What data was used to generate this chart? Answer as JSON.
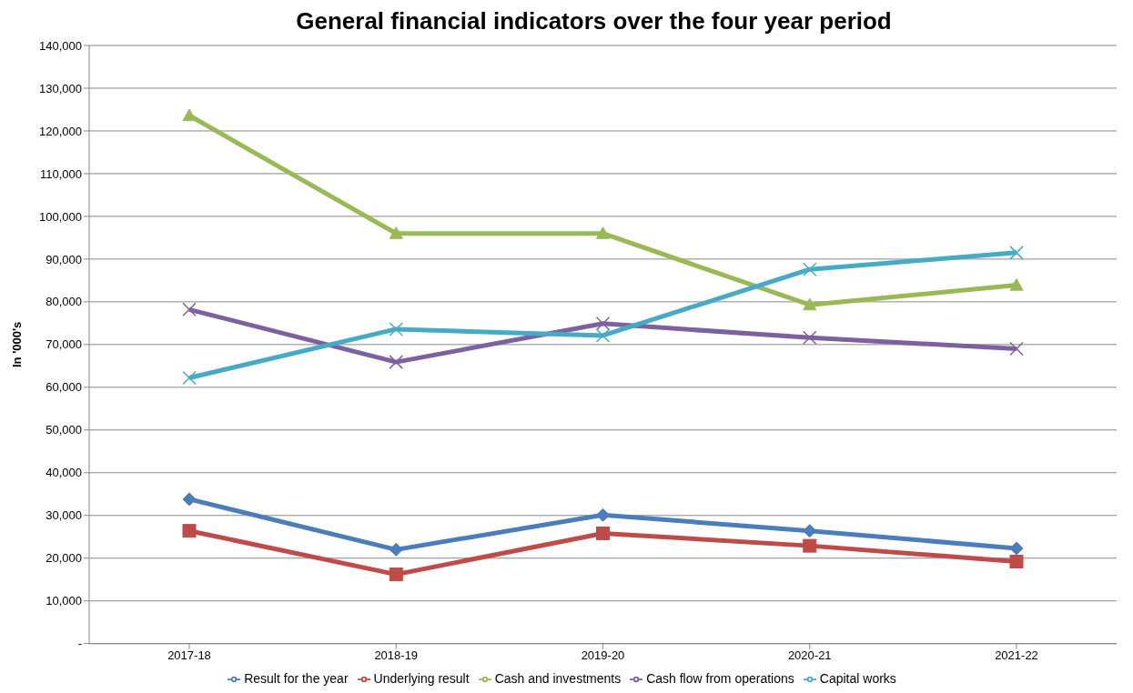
{
  "chart_data": {
    "type": "line",
    "title": "General financial indicators over the four year period",
    "ylabel": "In '000's",
    "categories": [
      "2017-18",
      "2018-19",
      "2019-20",
      "2020-21",
      "2021-22"
    ],
    "series": [
      {
        "name": "Result for the year",
        "color": "#4a7ebb",
        "marker": "diamond",
        "values": [
          33800,
          22000,
          30100,
          26400,
          22300
        ]
      },
      {
        "name": "Underlying result",
        "color": "#be4b48",
        "marker": "square",
        "values": [
          26400,
          16200,
          25800,
          22900,
          19200
        ]
      },
      {
        "name": "Cash and investments",
        "color": "#98b954",
        "marker": "triangle",
        "values": [
          123600,
          96000,
          96000,
          79300,
          83900
        ]
      },
      {
        "name": "Cash flow from operations",
        "color": "#7d60a0",
        "marker": "cross",
        "values": [
          78200,
          65900,
          74900,
          71600,
          69000
        ]
      },
      {
        "name": "Capital works",
        "color": "#46aac5",
        "marker": "cross",
        "values": [
          62200,
          73600,
          72100,
          87600,
          91500
        ]
      }
    ],
    "ylim": [
      0,
      140000
    ],
    "yticks": [
      {
        "value": 0,
        "label": "-"
      },
      {
        "value": 10000,
        "label": "10,000"
      },
      {
        "value": 20000,
        "label": "20,000"
      },
      {
        "value": 30000,
        "label": "30,000"
      },
      {
        "value": 40000,
        "label": "40,000"
      },
      {
        "value": 50000,
        "label": "50,000"
      },
      {
        "value": 60000,
        "label": "60,000"
      },
      {
        "value": 70000,
        "label": "70,000"
      },
      {
        "value": 80000,
        "label": "80,000"
      },
      {
        "value": 90000,
        "label": "90,000"
      },
      {
        "value": 100000,
        "label": "100,000"
      },
      {
        "value": 110000,
        "label": "110,000"
      },
      {
        "value": 120000,
        "label": "120,000"
      },
      {
        "value": 130000,
        "label": "130,000"
      },
      {
        "value": 140000,
        "label": "140,000"
      }
    ],
    "grid": "y",
    "legend": "bottom",
    "line_style": "solid"
  }
}
